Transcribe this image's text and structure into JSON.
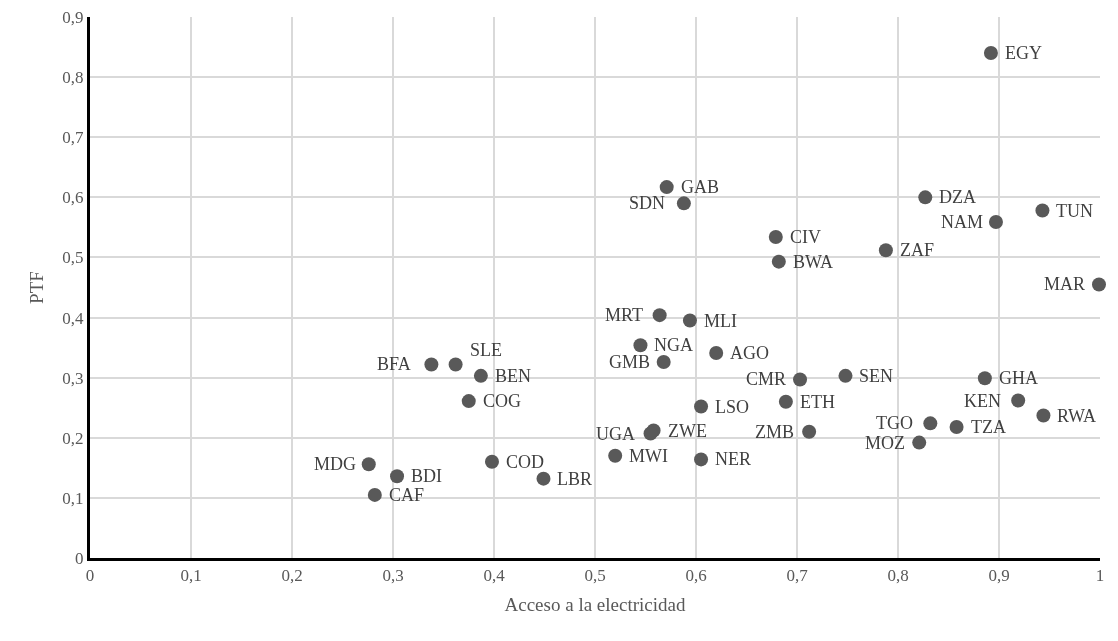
{
  "chart_data": {
    "type": "scatter",
    "xlabel": "Acceso a la electricidad",
    "ylabel": "PTF",
    "x": [
      0.892,
      0.571,
      0.588,
      0.827,
      0.943,
      0.897,
      0.679,
      0.788,
      0.682,
      0.999,
      0.564,
      0.594,
      0.545,
      0.62,
      0.568,
      0.338,
      0.362,
      0.387,
      0.375,
      0.703,
      0.748,
      0.886,
      0.919,
      0.944,
      0.605,
      0.689,
      0.832,
      0.858,
      0.821,
      0.712,
      0.558,
      0.555,
      0.52,
      0.605,
      0.276,
      0.304,
      0.282,
      0.398,
      0.449
    ],
    "values": [
      0.84,
      0.617,
      0.59,
      0.6,
      0.578,
      0.559,
      0.534,
      0.512,
      0.493,
      0.455,
      0.404,
      0.395,
      0.354,
      0.341,
      0.326,
      0.322,
      0.322,
      0.303,
      0.261,
      0.297,
      0.303,
      0.299,
      0.262,
      0.237,
      0.252,
      0.26,
      0.224,
      0.218,
      0.192,
      0.21,
      0.212,
      0.207,
      0.17,
      0.164,
      0.156,
      0.136,
      0.105,
      0.16,
      0.132
    ],
    "annotations": [
      {
        "text": "EGY",
        "x": 0.892,
        "y": 0.84
      },
      {
        "text": "GAB",
        "x": 0.571,
        "y": 0.617
      },
      {
        "text": "SDN",
        "x": 0.588,
        "y": 0.59
      },
      {
        "text": "DZA",
        "x": 0.827,
        "y": 0.6
      },
      {
        "text": "TUN",
        "x": 0.943,
        "y": 0.578
      },
      {
        "text": "NAM",
        "x": 0.897,
        "y": 0.559
      },
      {
        "text": "CIV",
        "x": 0.679,
        "y": 0.534
      },
      {
        "text": "ZAF",
        "x": 0.788,
        "y": 0.512
      },
      {
        "text": "BWA",
        "x": 0.682,
        "y": 0.493
      },
      {
        "text": "MAR",
        "x": 0.999,
        "y": 0.455
      },
      {
        "text": "MRT",
        "x": 0.564,
        "y": 0.404
      },
      {
        "text": "MLI",
        "x": 0.594,
        "y": 0.395
      },
      {
        "text": "NGA",
        "x": 0.545,
        "y": 0.354
      },
      {
        "text": "AGO",
        "x": 0.62,
        "y": 0.341
      },
      {
        "text": "GMB",
        "x": 0.568,
        "y": 0.326
      },
      {
        "text": "BFA",
        "x": 0.338,
        "y": 0.322
      },
      {
        "text": "SLE",
        "x": 0.362,
        "y": 0.322
      },
      {
        "text": "BEN",
        "x": 0.387,
        "y": 0.303
      },
      {
        "text": "COG",
        "x": 0.375,
        "y": 0.261
      },
      {
        "text": "CMR",
        "x": 0.703,
        "y": 0.297
      },
      {
        "text": "SEN",
        "x": 0.748,
        "y": 0.303
      },
      {
        "text": "GHA",
        "x": 0.886,
        "y": 0.299
      },
      {
        "text": "KEN",
        "x": 0.919,
        "y": 0.262
      },
      {
        "text": "RWA",
        "x": 0.944,
        "y": 0.237
      },
      {
        "text": "LSO",
        "x": 0.605,
        "y": 0.252
      },
      {
        "text": "ETH",
        "x": 0.689,
        "y": 0.26
      },
      {
        "text": "TGO",
        "x": 0.832,
        "y": 0.224
      },
      {
        "text": "TZA",
        "x": 0.858,
        "y": 0.218
      },
      {
        "text": "MOZ",
        "x": 0.821,
        "y": 0.192
      },
      {
        "text": "ZMB",
        "x": 0.712,
        "y": 0.21
      },
      {
        "text": "ZWE",
        "x": 0.558,
        "y": 0.212
      },
      {
        "text": "UGA",
        "x": 0.555,
        "y": 0.207
      },
      {
        "text": "MWI",
        "x": 0.52,
        "y": 0.17
      },
      {
        "text": "NER",
        "x": 0.605,
        "y": 0.164
      },
      {
        "text": "MDG",
        "x": 0.276,
        "y": 0.156
      },
      {
        "text": "BDI",
        "x": 0.304,
        "y": 0.136
      },
      {
        "text": "CAF",
        "x": 0.282,
        "y": 0.105
      },
      {
        "text": "COD",
        "x": 0.398,
        "y": 0.16
      },
      {
        "text": "LBR",
        "x": 0.449,
        "y": 0.132
      }
    ],
    "color": "#595959",
    "marker": "circle",
    "xlim": [
      0,
      1
    ],
    "xticks": [
      {
        "value": 0,
        "label": "0"
      },
      {
        "value": 0.1,
        "label": "0,1"
      },
      {
        "value": 0.2,
        "label": "0,2"
      },
      {
        "value": 0.3,
        "label": "0,3"
      },
      {
        "value": 0.4,
        "label": "0,4"
      },
      {
        "value": 0.5,
        "label": "0,5"
      },
      {
        "value": 0.6,
        "label": "0,6"
      },
      {
        "value": 0.7,
        "label": "0,7"
      },
      {
        "value": 0.8,
        "label": "0,8"
      },
      {
        "value": 0.9,
        "label": "0,9"
      },
      {
        "value": 1,
        "label": "1"
      }
    ],
    "ylim": [
      0,
      0.9
    ],
    "yticks": [
      {
        "value": 0,
        "label": "0"
      },
      {
        "value": 0.1,
        "label": "0,1"
      },
      {
        "value": 0.2,
        "label": "0,2"
      },
      {
        "value": 0.3,
        "label": "0,3"
      },
      {
        "value": 0.4,
        "label": "0,4"
      },
      {
        "value": 0.5,
        "label": "0,5"
      },
      {
        "value": 0.6,
        "label": "0,6"
      },
      {
        "value": 0.7,
        "label": "0,7"
      },
      {
        "value": 0.8,
        "label": "0,8"
      },
      {
        "value": 0.9,
        "label": "0,9"
      }
    ],
    "grid": true
  }
}
